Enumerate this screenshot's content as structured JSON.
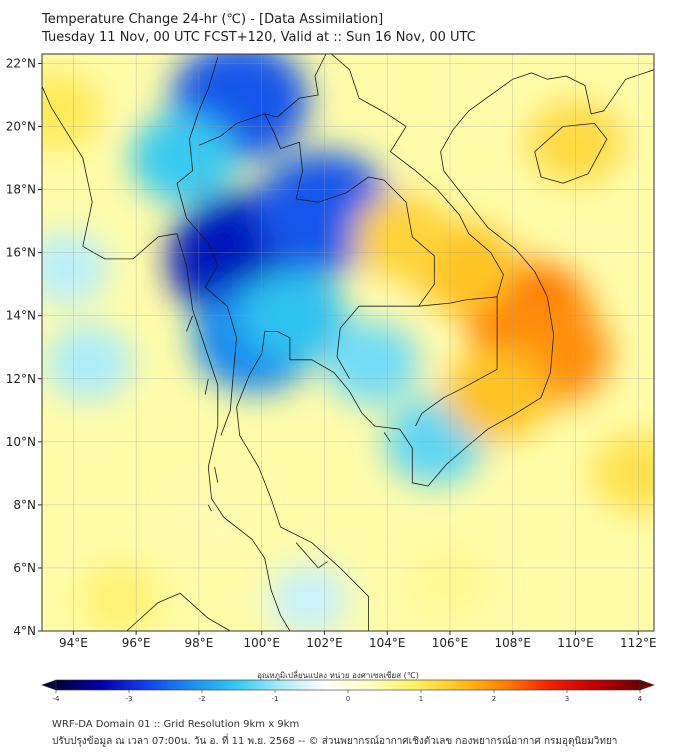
{
  "title": {
    "line1": "Temperature Change 24-hr (℃) - [Data Assimilation]",
    "line2": "Tuesday 11 Nov, 00 UTC FCST+120, Valid at :: Sun 16 Nov, 00 UTC"
  },
  "map": {
    "lat_labels": [
      "22°N",
      "20°N",
      "18°N",
      "16°N",
      "14°N",
      "12°N",
      "10°N",
      "8°N",
      "6°N",
      "4°N"
    ],
    "lon_labels": [
      "94°E",
      "96°E",
      "98°E",
      "100°E",
      "102°E",
      "104°E",
      "106°E",
      "108°E",
      "110°E",
      "112°E"
    ],
    "extent": {
      "lon_min": 93,
      "lon_max": 112.5,
      "lat_min": 4,
      "lat_max": 22.3
    },
    "field_blobs": [
      {
        "lon": 99.5,
        "lat": 15.8,
        "value": -3.2
      },
      {
        "lon": 99.3,
        "lat": 20.8,
        "value": -2.6
      },
      {
        "lon": 102.0,
        "lat": 17.3,
        "value": -2.6
      },
      {
        "lon": 99.8,
        "lat": 13.3,
        "value": -2.2
      },
      {
        "lon": 101.0,
        "lat": 14.0,
        "value": -1.6
      },
      {
        "lon": 97.5,
        "lat": 19.0,
        "value": -1.5
      },
      {
        "lon": 103.5,
        "lat": 12.5,
        "value": -1.2
      },
      {
        "lon": 105.5,
        "lat": 10.0,
        "value": -1.3
      },
      {
        "lon": 93.8,
        "lat": 15.5,
        "value": -0.8
      },
      {
        "lon": 94.5,
        "lat": 12.5,
        "value": -0.9
      },
      {
        "lon": 101.5,
        "lat": 5.0,
        "value": -0.7
      },
      {
        "lon": 108.5,
        "lat": 14.0,
        "value": 2.2
      },
      {
        "lon": 109.2,
        "lat": 12.8,
        "value": 2.0
      },
      {
        "lon": 106.5,
        "lat": 15.5,
        "value": 1.5
      },
      {
        "lon": 104.5,
        "lat": 16.5,
        "value": 1.3
      },
      {
        "lon": 107.5,
        "lat": 11.5,
        "value": 1.5
      },
      {
        "lon": 110.0,
        "lat": 19.5,
        "value": 1.2
      },
      {
        "lon": 93.5,
        "lat": 20.5,
        "value": 1.0
      },
      {
        "lon": 112.0,
        "lat": 9.0,
        "value": 1.1
      },
      {
        "lon": 95.5,
        "lat": 5.0,
        "value": 0.8
      },
      {
        "lon": 106.0,
        "lat": 5.5,
        "value": 0.6
      },
      {
        "lon": 98.5,
        "lat": 7.5,
        "value": 0.4
      }
    ]
  },
  "colorbar": {
    "label": "อุณหภูมิเปลี่ยนแปลง หน่วย องศาเซลเซียส (℃)",
    "min": -4,
    "max": 4,
    "ticks": [
      "-4",
      "-3",
      "-2",
      "-1",
      "0",
      "1",
      "2",
      "3",
      "4"
    ],
    "colors": [
      "#00003a",
      "#0000a8",
      "#1040e8",
      "#1a8ff0",
      "#30c8f0",
      "#a8ecfa",
      "#ffffff",
      "#ffffc0",
      "#fff060",
      "#ffc020",
      "#ff8000",
      "#f02000",
      "#c00000",
      "#6a0000"
    ]
  },
  "footer": {
    "line1": "WRF-DA Domain 01 :: Grid Resolution 9km x 9km",
    "line2": "ปรับปรุงข้อมูล ณ เวลา 07:00น. วัน อ. ที่ 11 พ.ย. 2568 -- © ส่วนพยากรณ์อากาศเชิงตัวเลข กองพยากรณ์อากาศ กรมอุตุนิยมวิทยา"
  }
}
